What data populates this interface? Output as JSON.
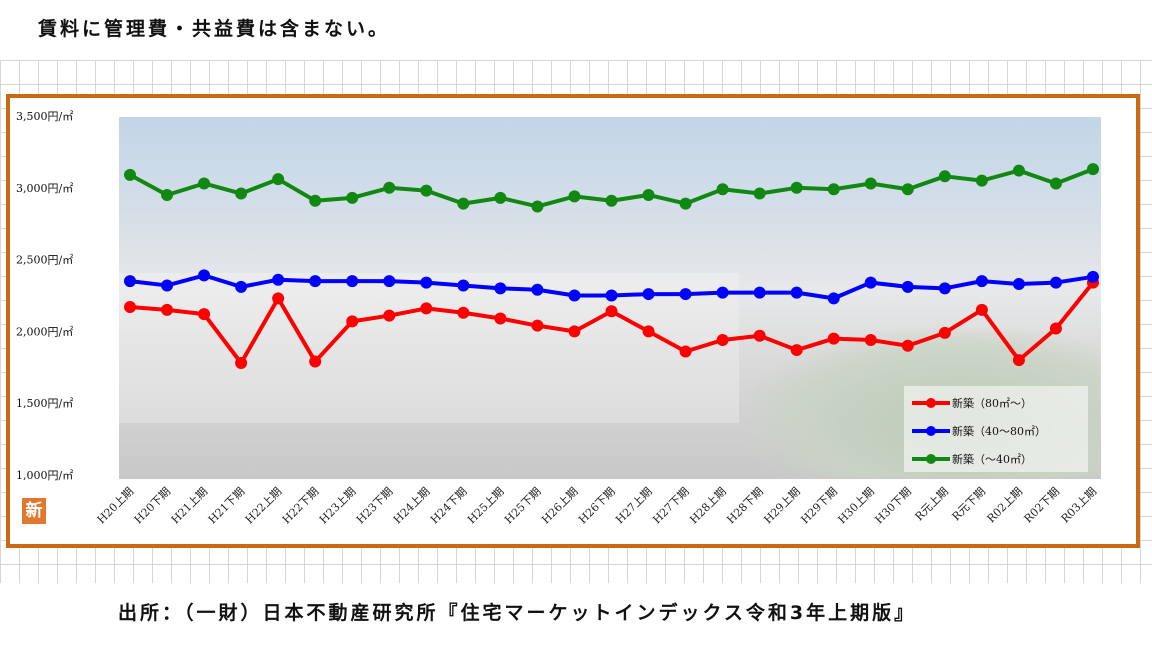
{
  "note": "賃料に管理費・共益費は含まない。",
  "source": "出所：（一財）日本不動産研究所『住宅マーケットインデックス令和3年上期版』",
  "badge": "新",
  "chart_data": {
    "type": "line",
    "title": "",
    "xlabel": "",
    "ylabel": "",
    "ylim": [
      1000,
      3500
    ],
    "yticks": [
      {
        "value": 3500,
        "label": "3,500円/㎡"
      },
      {
        "value": 3000,
        "label": "3,000円/㎡"
      },
      {
        "value": 2500,
        "label": "2,500円/㎡"
      },
      {
        "value": 2000,
        "label": "2,000円/㎡"
      },
      {
        "value": 1500,
        "label": "1,500円/㎡"
      },
      {
        "value": 1000,
        "label": "1,000円/㎡"
      }
    ],
    "grid": false,
    "legend_position": "bottom-right",
    "categories": [
      "H20上期",
      "H20下期",
      "H21上期",
      "H21下期",
      "H22上期",
      "H22下期",
      "H23上期",
      "H23下期",
      "H24上期",
      "H24下期",
      "H25上期",
      "H25下期",
      "H26上期",
      "H26下期",
      "H27上期",
      "H27下期",
      "H28上期",
      "H28下期",
      "H29上期",
      "H29下期",
      "H30上期",
      "H30下期",
      "R元上期",
      "R元下期",
      "R02上期",
      "R02下期",
      "R03上期"
    ],
    "series": [
      {
        "name": "新築（80㎡～）",
        "color": "#ff0000",
        "values": [
          2170,
          2150,
          2120,
          1780,
          2230,
          1790,
          2070,
          2110,
          2160,
          2130,
          2090,
          2040,
          2000,
          2140,
          2000,
          1860,
          1940,
          1970,
          1870,
          1950,
          1940,
          1900,
          1990,
          2150,
          1800,
          2020,
          2340
        ]
      },
      {
        "name": "新築（40～80㎡）",
        "color": "#0000ff",
        "values": [
          2350,
          2320,
          2390,
          2310,
          2360,
          2350,
          2350,
          2350,
          2340,
          2320,
          2300,
          2290,
          2250,
          2250,
          2260,
          2260,
          2270,
          2270,
          2270,
          2230,
          2340,
          2310,
          2300,
          2350,
          2330,
          2340,
          2380
        ]
      },
      {
        "name": "新築（～40㎡）",
        "color": "#118811",
        "values": [
          3090,
          2950,
          3030,
          2960,
          3060,
          2910,
          2930,
          3000,
          2980,
          2890,
          2930,
          2870,
          2940,
          2910,
          2950,
          2890,
          2990,
          2960,
          3000,
          2990,
          3030,
          2990,
          3080,
          3050,
          3120,
          3030,
          3130
        ]
      }
    ]
  }
}
